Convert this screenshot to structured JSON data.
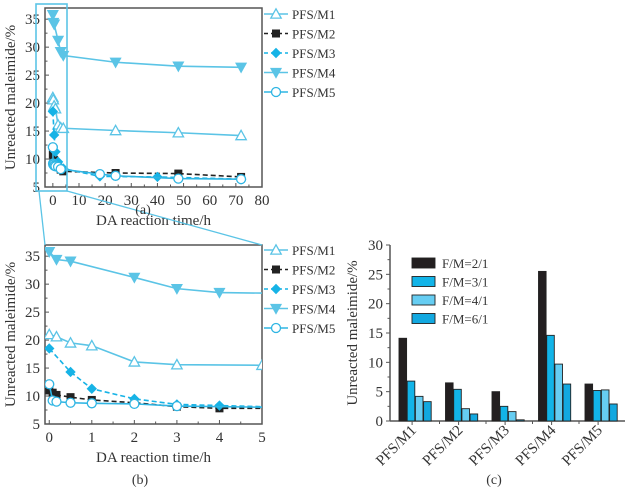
{
  "colors": {
    "axis": "#555555",
    "zoom_box": "#5bc4e6",
    "M1": "#5bc4e6",
    "M2": "#222222",
    "M3": "#16b3e6",
    "M4": "#5bc4e6",
    "M5": "#2fb5e3",
    "bar_2_1": "#231f20",
    "bar_3_1": "#12b4e8",
    "bar_4_1": "#66cdf2",
    "bar_6_1": "#12a8e0"
  },
  "chart_data": [
    {
      "panel": "(a)",
      "type": "line",
      "xlabel": "DA reaction time/h",
      "ylabel": "Unreacted maleimide/%",
      "xlim": [
        -3,
        80
      ],
      "ylim": [
        5,
        37
      ],
      "xticks": [
        0,
        10,
        20,
        30,
        40,
        50,
        60,
        70,
        80
      ],
      "yticks": [
        5,
        10,
        15,
        20,
        25,
        30,
        35
      ],
      "legend_position": "right",
      "series": [
        {
          "name": "PFS/M1",
          "marker": "triangle-up-open",
          "dash": "solid",
          "x": [
            0,
            0.17,
            0.5,
            1,
            2,
            3,
            4,
            24,
            48,
            72
          ],
          "y": [
            21,
            20.6,
            19.5,
            19,
            16.1,
            15.6,
            15.5,
            15.1,
            14.7,
            14.2
          ]
        },
        {
          "name": "PFS/M2",
          "marker": "square-filled",
          "dash": "dashed",
          "x": [
            0,
            0.17,
            0.5,
            1,
            2,
            3,
            4,
            24,
            48,
            72
          ],
          "y": [
            10.8,
            10.2,
            9.8,
            9.3,
            8.8,
            8.1,
            7.8,
            7.5,
            7.4,
            6.8
          ]
        },
        {
          "name": "PFS/M3",
          "marker": "diamond-filled",
          "dash": "dashed",
          "x": [
            0,
            0.5,
            1,
            2,
            3,
            4,
            18,
            40,
            72
          ],
          "y": [
            18.5,
            14.3,
            11.3,
            9.5,
            8.4,
            8.3,
            6.9,
            6.8,
            6.4
          ]
        },
        {
          "name": "PFS/M4",
          "marker": "triangle-down-filled",
          "dash": "solid",
          "x": [
            0,
            0.17,
            0.5,
            2,
            3,
            4,
            24,
            48,
            72
          ],
          "y": [
            35.8,
            34.4,
            34.1,
            31.2,
            29.2,
            28.5,
            27.3,
            26.6,
            26.4
          ]
        },
        {
          "name": "PFS/M5",
          "marker": "circle-open",
          "dash": "solid",
          "x": [
            0,
            0.08,
            0.17,
            0.5,
            1,
            2,
            3,
            18,
            24,
            48,
            72
          ],
          "y": [
            12.1,
            9.2,
            9.0,
            8.8,
            8.7,
            8.6,
            8.2,
            7.3,
            7.0,
            6.5,
            6.4
          ]
        }
      ]
    },
    {
      "panel": "(b)",
      "type": "line",
      "xlabel": "DA reaction time/h",
      "ylabel": "Unreacted maleimide/%",
      "xlim": [
        -0.1,
        5
      ],
      "ylim": [
        5,
        37
      ],
      "xticks": [
        0,
        1,
        2,
        3,
        4,
        5
      ],
      "yticks": [
        5,
        10,
        15,
        20,
        25,
        30,
        35
      ],
      "legend_position": "right",
      "series": [
        {
          "name": "PFS/M1",
          "marker": "triangle-up-open",
          "dash": "solid",
          "x": [
            0,
            0.17,
            0.5,
            1,
            2,
            3,
            5
          ],
          "y": [
            21,
            20.6,
            19.5,
            19,
            16.1,
            15.6,
            15.5
          ],
          "markers_upto": 5
        },
        {
          "name": "PFS/M2",
          "marker": "square-filled",
          "dash": "dashed",
          "x": [
            0,
            0.08,
            0.17,
            0.5,
            1,
            2,
            3,
            4,
            5
          ],
          "y": [
            11,
            10.6,
            10.2,
            9.8,
            9.3,
            8.8,
            8.1,
            7.8,
            7.8
          ],
          "markers_upto": 4
        },
        {
          "name": "PFS/M3",
          "marker": "diamond-filled",
          "dash": "dashed",
          "x": [
            0,
            0.5,
            1,
            2,
            3,
            4,
            5
          ],
          "y": [
            18.5,
            14.3,
            11.3,
            9.5,
            8.5,
            8.3,
            8.1
          ],
          "markers_upto": 4
        },
        {
          "name": "PFS/M4",
          "marker": "triangle-down-filled",
          "dash": "solid",
          "x": [
            0,
            0.17,
            0.5,
            2,
            3,
            4,
            5
          ],
          "y": [
            35.8,
            34.4,
            34.1,
            31.2,
            29.2,
            28.5,
            28.4
          ],
          "markers_upto": 4
        },
        {
          "name": "PFS/M5",
          "marker": "circle-open",
          "dash": "solid",
          "x": [
            0,
            0.08,
            0.17,
            0.5,
            1,
            2,
            3,
            5
          ],
          "y": [
            12.1,
            9.2,
            9.0,
            8.8,
            8.7,
            8.6,
            8.2,
            8.0
          ],
          "markers_upto": 3
        }
      ]
    },
    {
      "panel": "(c)",
      "type": "bar",
      "ylabel": "Unreacted maleimide/%",
      "ylim": [
        0,
        30
      ],
      "yticks": [
        0,
        5,
        10,
        15,
        20,
        25,
        30
      ],
      "categories": [
        "PFS/M1",
        "PFS/M2",
        "PFS/M3",
        "PFS/M4",
        "PFS/M5"
      ],
      "legend_position": "top-left",
      "series": [
        {
          "name": "F/M=2/1",
          "values": [
            14.1,
            6.5,
            5.0,
            25.5,
            6.3
          ]
        },
        {
          "name": "F/M=3/1",
          "values": [
            6.8,
            5.4,
            2.5,
            14.6,
            5.2
          ]
        },
        {
          "name": "F/M=4/1",
          "values": [
            4.2,
            2.1,
            1.6,
            9.7,
            5.3
          ]
        },
        {
          "name": "F/M=6/1",
          "values": [
            3.3,
            1.2,
            0.2,
            6.3,
            2.9
          ]
        }
      ]
    }
  ]
}
